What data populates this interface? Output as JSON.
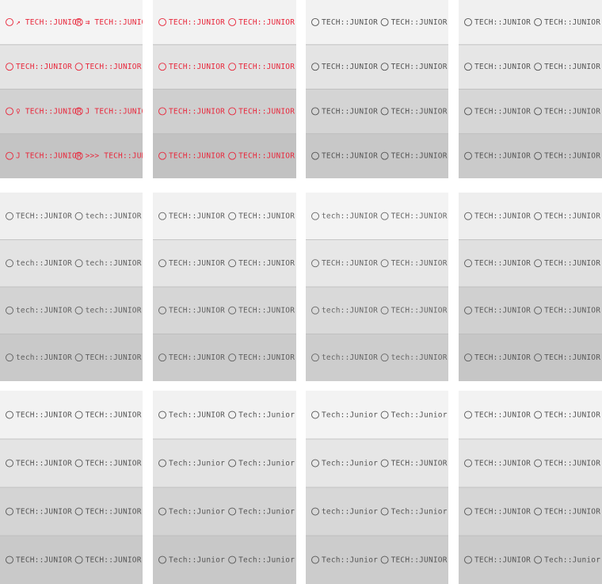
{
  "sheets": [
    {
      "ink": "#e8283c",
      "bg": [
        "#f4f4f4",
        "#e4e4e4",
        "#d2d2d2",
        "#c4c4c4"
      ],
      "rows": [
        [
          "↗ TECH::JUNIOR",
          "⇉ TECH::JUNIOR"
        ],
        [
          "TECH::JUNIOR",
          "TECH::JUNIOR"
        ],
        [
          "♀ TECH::JUNIOR",
          "J TECH::JUNIOR"
        ],
        [
          "J TECH::JUNIOR",
          ">>> TECH::JUNIOR"
        ]
      ]
    },
    {
      "ink": "#e8283c",
      "bg": [
        "#f2f2f2",
        "#e2e2e2",
        "#cfcfcf",
        "#c2c2c2"
      ],
      "rows": [
        [
          "TECH::JUNIOR",
          "TECH::JUNIOR"
        ],
        [
          "TECH::JUNIOR",
          "TECH::JUNIOR"
        ],
        [
          "TECH::JUNIOR",
          "TECH::JUNIOR"
        ],
        [
          "TECH::JUNIOR",
          "TECH::JUNIOR"
        ]
      ]
    },
    {
      "ink": "#555555",
      "bg": [
        "#f2f2f2",
        "#e4e4e4",
        "#d4d4d4",
        "#c8c8c8"
      ],
      "rows": [
        [
          "TECH::JUNIOR",
          "TECH::JUNIOR"
        ],
        [
          "TECH::JUNIOR",
          "TECH::JUNIOR"
        ],
        [
          "TECH::JUNIOR",
          "TECH::JUNIOR"
        ],
        [
          "TECH::JUNIOR",
          "TECH::JUNIOR"
        ]
      ]
    },
    {
      "ink": "#555555",
      "bg": [
        "#f0f0f0",
        "#e6e6e6",
        "#d6d6d6",
        "#cacaca"
      ],
      "rows": [
        [
          "TECH::JUNIOR",
          "TECH::JUNIOR"
        ],
        [
          "TECH::JUNIOR",
          "TECH::JUNIOR"
        ],
        [
          "TECH::JUNIOR",
          "TECH::JUNIOR"
        ],
        [
          "TECH::JUNIOR",
          "TECH::JUNIOR"
        ]
      ]
    },
    {
      "ink": "#606060",
      "bg": [
        "#efefef",
        "#e3e3e3",
        "#d3d3d3",
        "#c9c9c9"
      ],
      "rows": [
        [
          "TECH::JUNIOR",
          "tech::JUNIOR"
        ],
        [
          "tech::JUNIOR",
          "tech::JUNIOR"
        ],
        [
          "tech::JUNIOR",
          "tech::JUNIOR"
        ],
        [
          "tech::JUNIOR",
          "TECH::JUNIOR"
        ]
      ]
    },
    {
      "ink": "#606060",
      "bg": [
        "#f1f1f1",
        "#e5e5e5",
        "#d6d6d6",
        "#cbcbcb"
      ],
      "rows": [
        [
          "TECH::JUNIOR",
          "TECH::JUNIOR"
        ],
        [
          "TECH::JUNIOR",
          "TECH::JUNIOR"
        ],
        [
          "TECH::JUNIOR",
          "TECH::JUNIOR"
        ],
        [
          "TECH::JUNIOR",
          "TECH::JUNIOR"
        ]
      ]
    },
    {
      "ink": "#666666",
      "bg": [
        "#f3f3f3",
        "#e7e7e7",
        "#d9d9d9",
        "#cdcdcd"
      ],
      "rows": [
        [
          "tech::JUNIOR",
          "TECH::JUNIOR"
        ],
        [
          "TECH::JUNIOR",
          "TECH::JUNIOR"
        ],
        [
          "tech::JUNIOR",
          "TECH::JUNIOR"
        ],
        [
          "tech::JUNIOR",
          "tech::JUNIOR"
        ]
      ]
    },
    {
      "ink": "#5a5a5a",
      "bg": [
        "#eeeeee",
        "#e0e0e0",
        "#d0d0d0",
        "#c6c6c6"
      ],
      "rows": [
        [
          "TECH::JUNIOR",
          "TECH::JUNIOR"
        ],
        [
          "TECH::JUNIOR",
          "TECH::JUNIOR"
        ],
        [
          "TECH::JUNIOR",
          "TECH::JUNIOR"
        ],
        [
          "TECH::JUNIOR",
          "TECH::JUNIOR"
        ]
      ]
    },
    {
      "ink": "#555555",
      "bg": [
        "#f2f2f2",
        "#e4e4e4",
        "#d4d4d4",
        "#c9c9c9"
      ],
      "rows": [
        [
          "TECH::JUNIOR",
          "TECH::JUNIOR"
        ],
        [
          "TECH::JUNIOR",
          "TECH::JUNIOR"
        ],
        [
          "TECH::JUNIOR",
          "TECH::JUNIOR"
        ],
        [
          "TECH::JUNIOR",
          "TECH::JUNIOR"
        ]
      ]
    },
    {
      "ink": "#555555",
      "bg": [
        "#f1f1f1",
        "#e3e3e3",
        "#d3d3d3",
        "#c8c8c8"
      ],
      "rows": [
        [
          "Tech::JUNIOR",
          "Tech::Junior"
        ],
        [
          "Tech::Junior",
          "Tech::Junior"
        ],
        [
          "Tech::Junior",
          "Tech::Junior"
        ],
        [
          "Tech::Junior",
          "Tech::Junior"
        ]
      ]
    },
    {
      "ink": "#555555",
      "bg": [
        "#f3f3f3",
        "#e6e6e6",
        "#d7d7d7",
        "#cccccc"
      ],
      "rows": [
        [
          "Tech::Junior",
          "Tech::Junior"
        ],
        [
          "Tech::Junior",
          "TECH::JUNIOR"
        ],
        [
          "tech::Junior",
          "Tech::Junior"
        ],
        [
          "Tech::Junior",
          "TECH::JUNIOR"
        ]
      ]
    },
    {
      "ink": "#555555",
      "bg": [
        "#f2f2f2",
        "#e5e5e5",
        "#d6d6d6",
        "#cbcbcb"
      ],
      "rows": [
        [
          "TECH::JUNIOR",
          "TECH::JUNIOR"
        ],
        [
          "TECH::JUNIOR",
          "TECH::JUNIOR"
        ],
        [
          "TECH::JUNIOR",
          "TECH::JUNIOR"
        ],
        [
          "TECH::JUNIOR",
          "Tech::Junior"
        ]
      ]
    }
  ]
}
